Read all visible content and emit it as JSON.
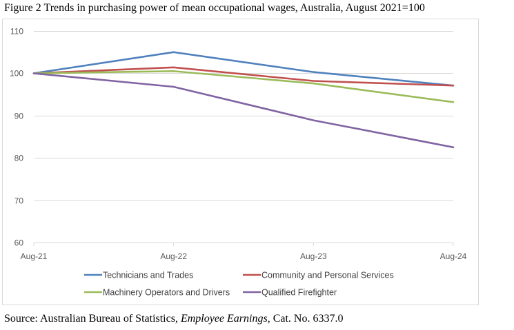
{
  "title": "Figure 2 Trends in purchasing power of mean occupational wages, Australia, August 2021=100",
  "source": {
    "prefix": "Source: Australian Bureau of Statistics, ",
    "publication": "Employee Earnings",
    "suffix": ", Cat. No. 6337.0"
  },
  "chart_data": {
    "type": "line",
    "title": "",
    "xlabel": "",
    "ylabel": "",
    "categories": [
      "Aug-21",
      "Aug-22",
      "Aug-23",
      "Aug-24"
    ],
    "ylim": [
      60,
      110
    ],
    "yticks": [
      60,
      70,
      80,
      90,
      100,
      110
    ],
    "grid": true,
    "legend_position": "bottom",
    "series": [
      {
        "name": "Technicians and Trades",
        "color": "#4f81bd",
        "values": [
          100,
          105.0,
          100.3,
          97.1
        ]
      },
      {
        "name": "Community and Personal Services",
        "color": "#c0504d",
        "values": [
          100,
          101.4,
          98.2,
          97.1
        ]
      },
      {
        "name": "Machinery Operators and Drivers",
        "color": "#9bbb59",
        "values": [
          100,
          100.5,
          97.6,
          93.2
        ]
      },
      {
        "name": "Qualified Firefighter",
        "color": "#8064a2",
        "values": [
          100,
          96.8,
          88.9,
          82.5
        ]
      }
    ]
  }
}
